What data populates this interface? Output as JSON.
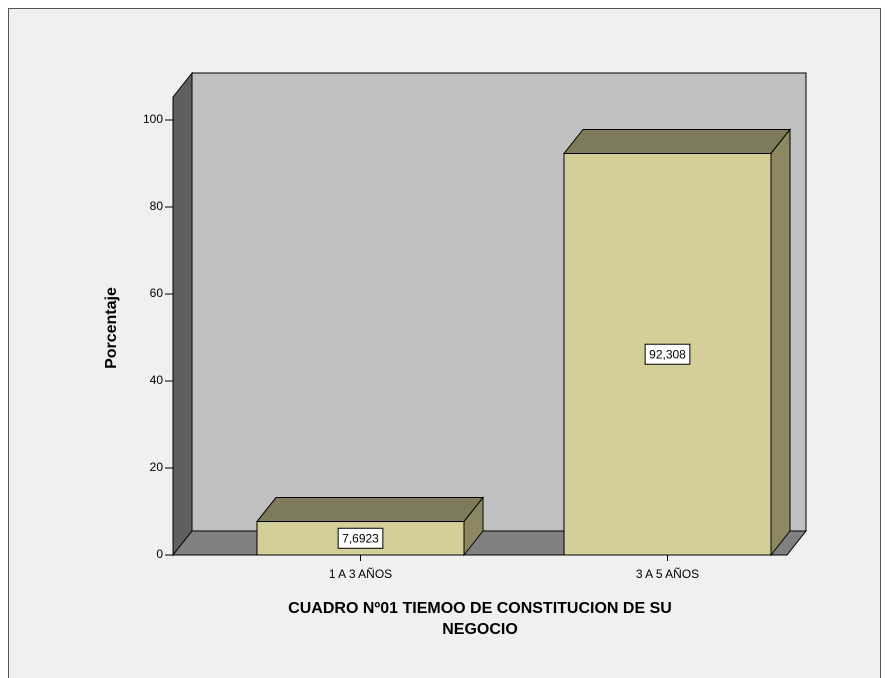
{
  "chart_data": {
    "type": "bar3d",
    "title": [
      "CUADRO Nº01 TIEMOO DE CONSTITUCION DE SU",
      "NEGOCIO"
    ],
    "ylabel": "Porcentaje",
    "categories": [
      "1 A 3 AÑOS",
      "3 A 5 AÑOS"
    ],
    "values": [
      7.6923,
      92.308
    ],
    "value_labels": [
      "7,6923",
      "92,308"
    ],
    "color": "#d4cf98",
    "ylim": [
      0,
      100
    ],
    "yticks": [
      0,
      20,
      40,
      60,
      80,
      100
    ]
  }
}
